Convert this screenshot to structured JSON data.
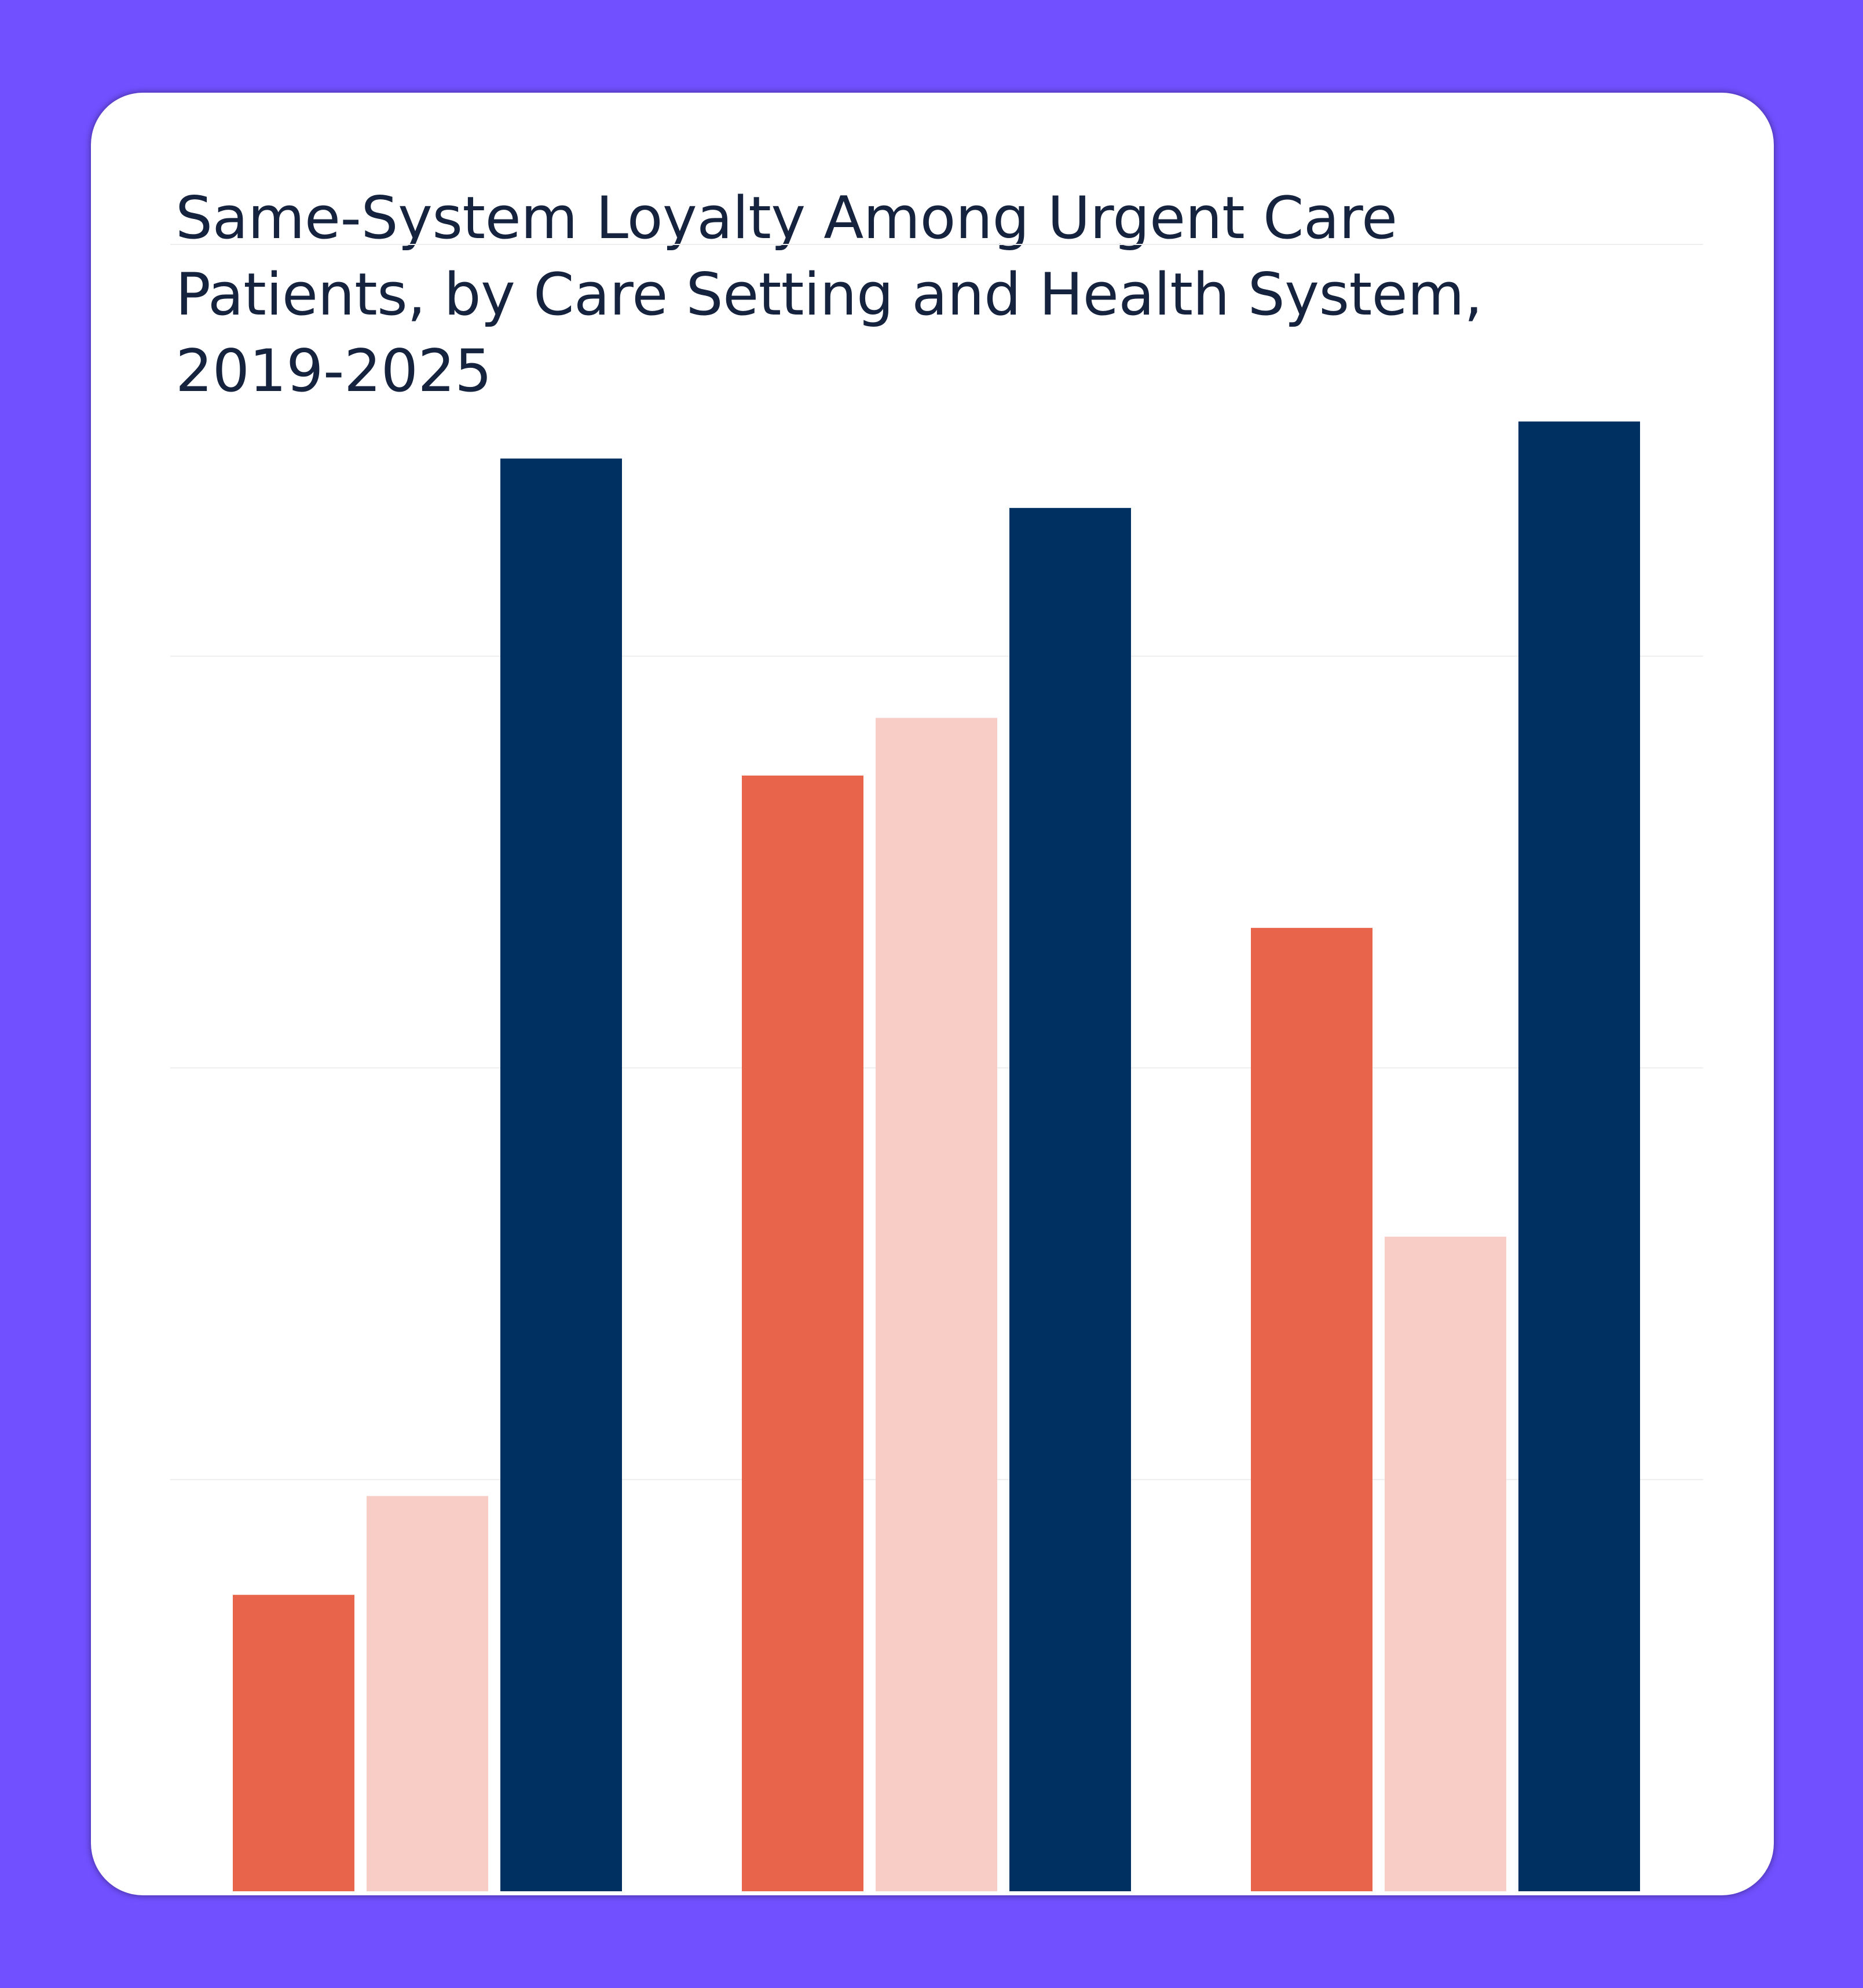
{
  "colors": {
    "background": "#7150ff",
    "card": "#ffffff",
    "title": "#15233f",
    "gridline": "#eeeeee",
    "series_1": "#e8644b",
    "series_2": "#f7cdc6",
    "series_3": "#002f61"
  },
  "chart_data": {
    "type": "bar",
    "title": "Same-System Loyalty Among Urgent Care Patients, by Care Setting and Health System, 2019-2025",
    "xlabel": "",
    "ylabel": "",
    "categories": [
      "",
      "",
      ""
    ],
    "series": [
      {
        "color": "#e8644b",
        "values": [
          0.72,
          2.71,
          2.34
        ]
      },
      {
        "color": "#f7cdc6",
        "values": [
          0.96,
          2.85,
          1.59
        ]
      },
      {
        "color": "#002f61",
        "values": [
          3.48,
          3.36,
          3.57
        ]
      }
    ],
    "ylim": [
      0,
      4
    ],
    "grid": true,
    "legend": "none"
  }
}
